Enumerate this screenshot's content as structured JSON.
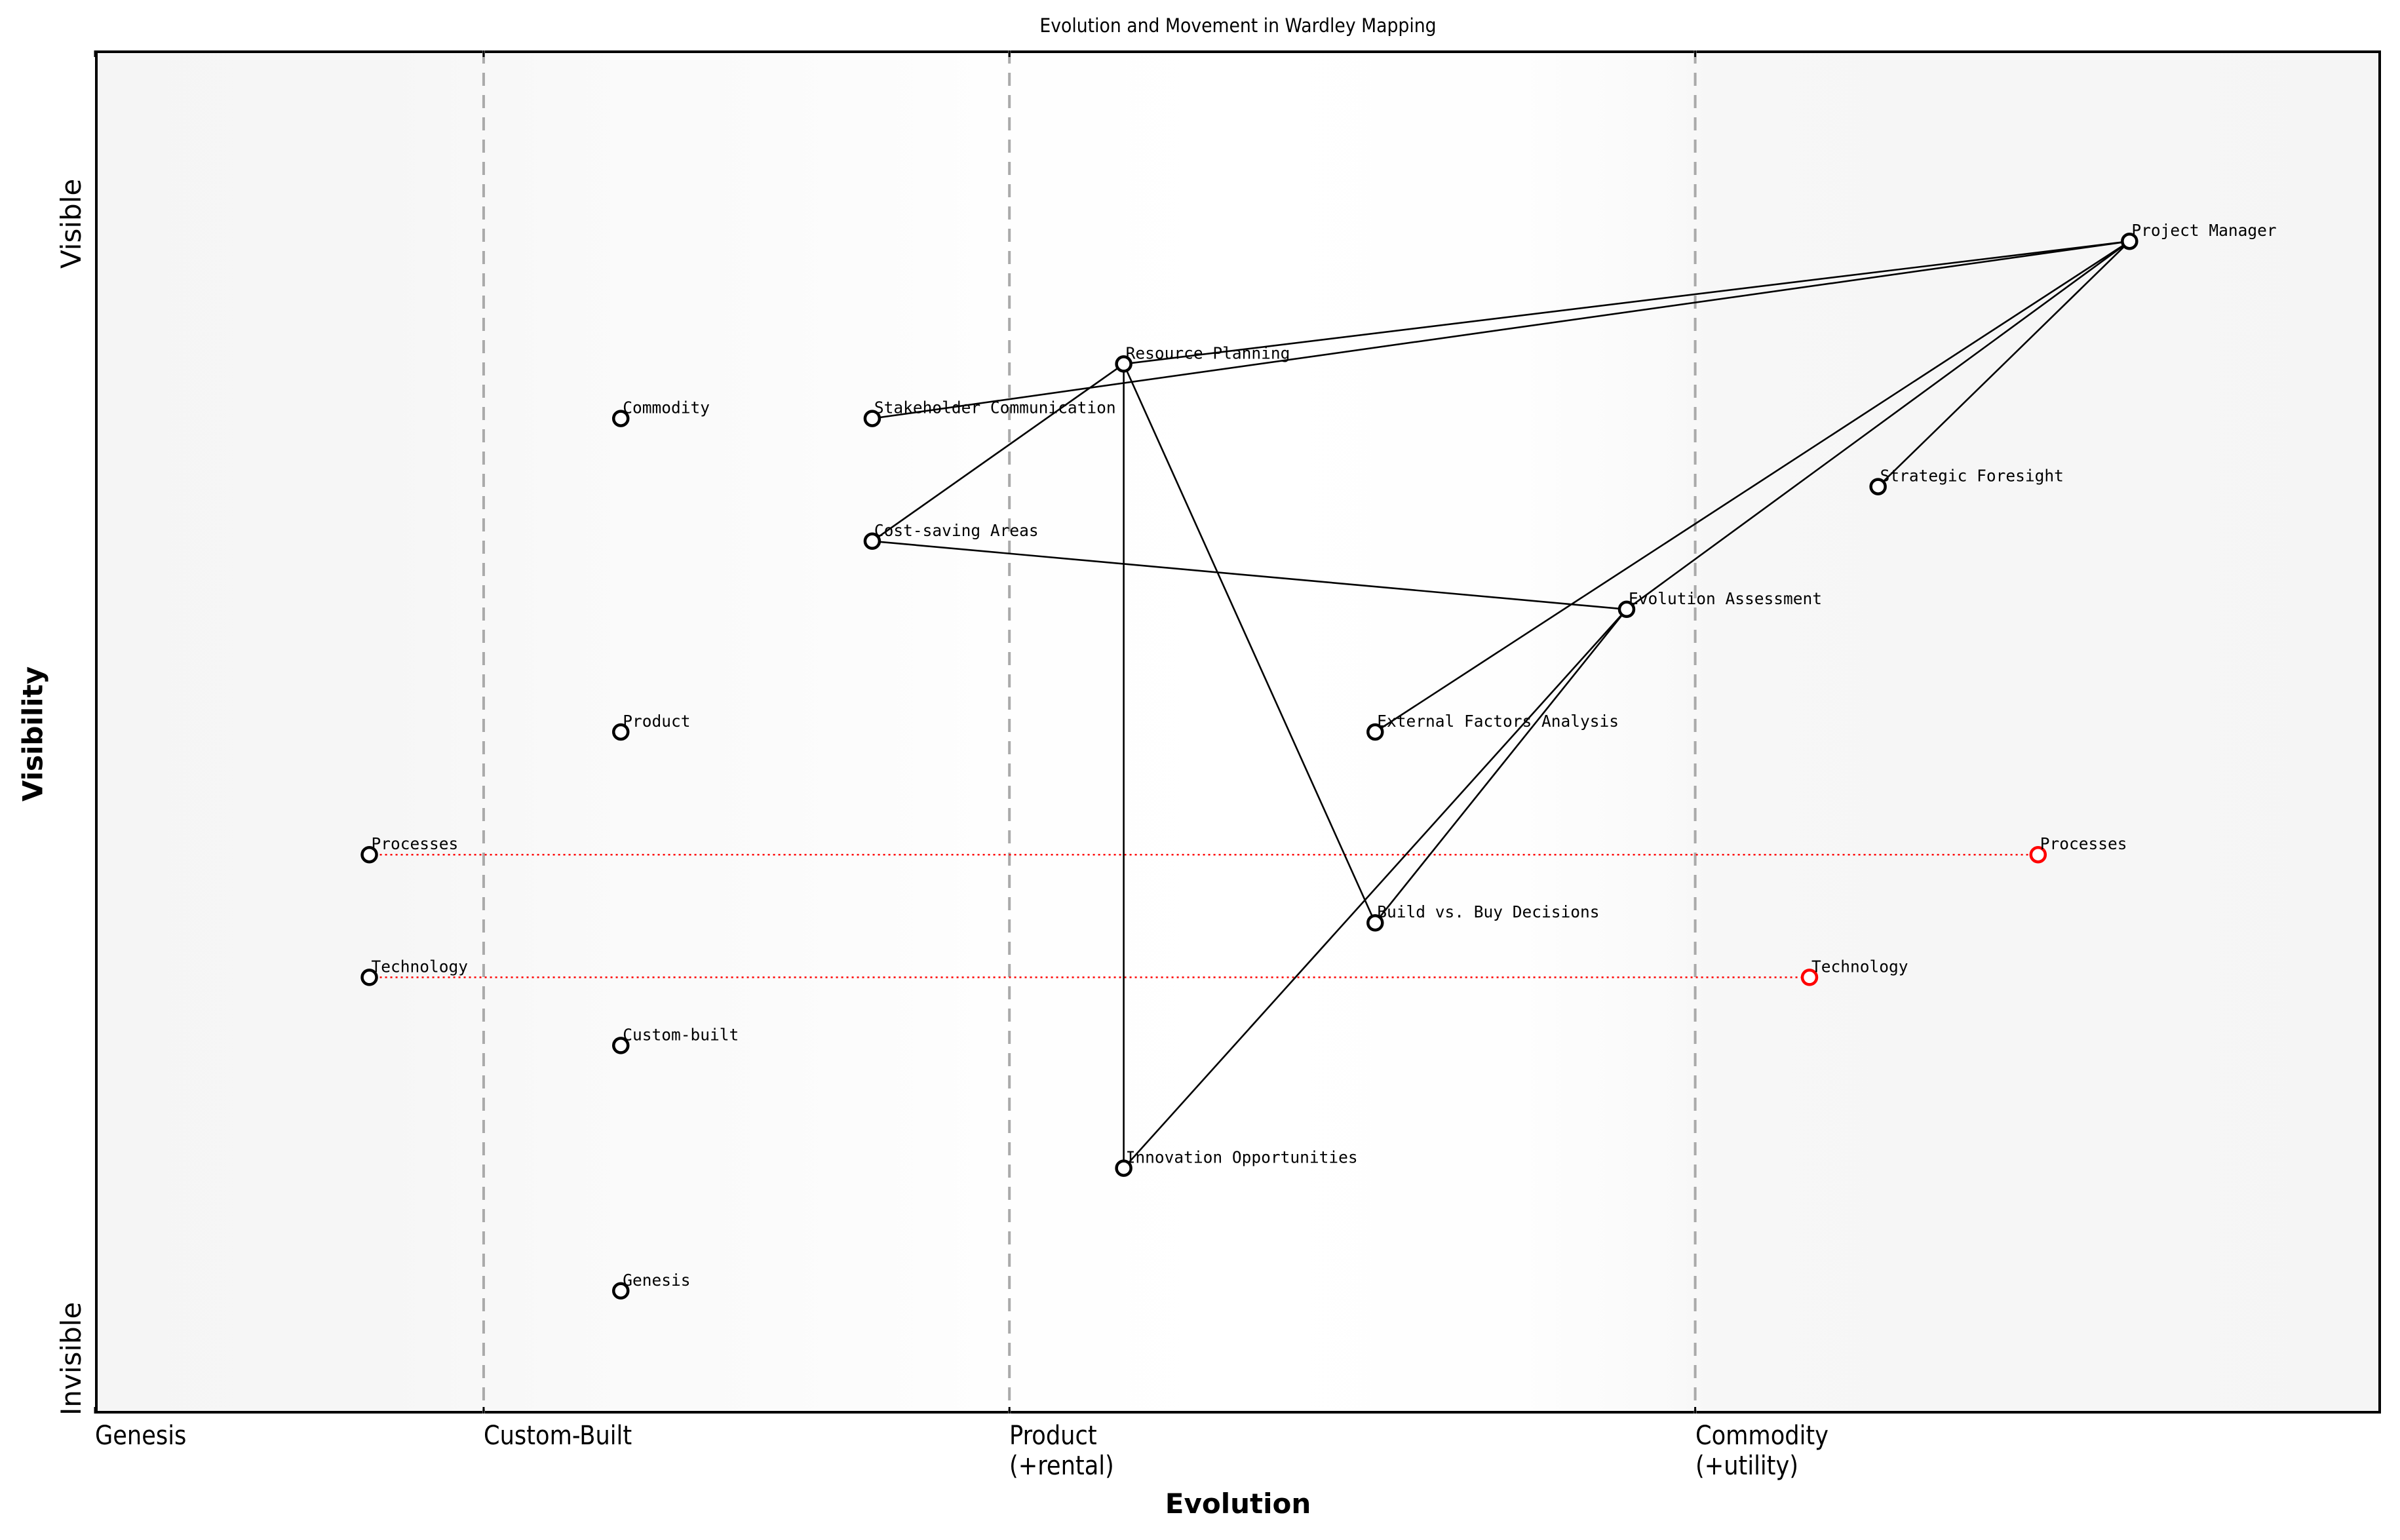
{
  "chart": {
    "title": "Evolution and Movement in Wardley Mapping",
    "xlabel": "Evolution",
    "ylabel": "Visibility",
    "y_top_label": "Visible",
    "y_bottom_label": "Invisible",
    "x_ticks": [
      {
        "label": "Genesis",
        "x": 0.0
      },
      {
        "label": "Custom-Built",
        "x": 0.17
      },
      {
        "label": "Product\n(+rental)",
        "x": 0.4
      },
      {
        "label": "Commodity\n(+utility)",
        "x": 0.7
      }
    ]
  },
  "colors": {
    "node_stroke": "#000000",
    "moved_node_stroke": "#ff0000",
    "movement_line": "#ff0000",
    "dependency_line": "#000000",
    "stage_divider": "#aaaaaa"
  },
  "chart_data": {
    "type": "scatter",
    "title": "Evolution and Movement in Wardley Mapping",
    "xlabel": "Evolution",
    "ylabel": "Visibility",
    "xlim": [
      0,
      1
    ],
    "ylim": [
      0,
      1
    ],
    "grid": false,
    "stage_dividers": [
      0.17,
      0.4,
      0.7
    ],
    "x_tick_labels": [
      "Genesis",
      "Custom-Built",
      "Product (+rental)",
      "Commodity (+utility)"
    ],
    "y_tick_labels": [
      "Invisible",
      "Visible"
    ],
    "nodes": [
      {
        "name": "Project Manager",
        "x": 0.89,
        "y": 0.86
      },
      {
        "name": "Resource Planning",
        "x": 0.45,
        "y": 0.77
      },
      {
        "name": "Commodity",
        "x": 0.23,
        "y": 0.73
      },
      {
        "name": "Stakeholder Communication",
        "x": 0.34,
        "y": 0.73
      },
      {
        "name": "Strategic Foresight",
        "x": 0.78,
        "y": 0.68
      },
      {
        "name": "Cost-saving Areas",
        "x": 0.34,
        "y": 0.64
      },
      {
        "name": "Evolution Assessment",
        "x": 0.67,
        "y": 0.59
      },
      {
        "name": "Product",
        "x": 0.23,
        "y": 0.5
      },
      {
        "name": "External Factors Analysis",
        "x": 0.56,
        "y": 0.5
      },
      {
        "name": "Processes",
        "x": 0.12,
        "y": 0.41
      },
      {
        "name": "Build vs. Buy Decisions",
        "x": 0.56,
        "y": 0.36
      },
      {
        "name": "Technology",
        "x": 0.12,
        "y": 0.32
      },
      {
        "name": "Custom-built",
        "x": 0.23,
        "y": 0.27
      },
      {
        "name": "Innovation Opportunities",
        "x": 0.45,
        "y": 0.18
      },
      {
        "name": "Genesis",
        "x": 0.23,
        "y": 0.09
      }
    ],
    "moved_nodes": [
      {
        "name": "Processes",
        "from_x": 0.12,
        "to_x": 0.85,
        "y": 0.41
      },
      {
        "name": "Technology",
        "from_x": 0.12,
        "to_x": 0.75,
        "y": 0.32
      }
    ],
    "links": [
      [
        "Project Manager",
        "Resource Planning"
      ],
      [
        "Project Manager",
        "Stakeholder Communication"
      ],
      [
        "Project Manager",
        "Strategic Foresight"
      ],
      [
        "Project Manager",
        "Evolution Assessment"
      ],
      [
        "Project Manager",
        "External Factors Analysis"
      ],
      [
        "Resource Planning",
        "Cost-saving Areas"
      ],
      [
        "Resource Planning",
        "Build vs. Buy Decisions"
      ],
      [
        "Resource Planning",
        "Innovation Opportunities"
      ],
      [
        "Cost-saving Areas",
        "Evolution Assessment"
      ],
      [
        "Evolution Assessment",
        "Build vs. Buy Decisions"
      ],
      [
        "Evolution Assessment",
        "Innovation Opportunities"
      ]
    ]
  }
}
